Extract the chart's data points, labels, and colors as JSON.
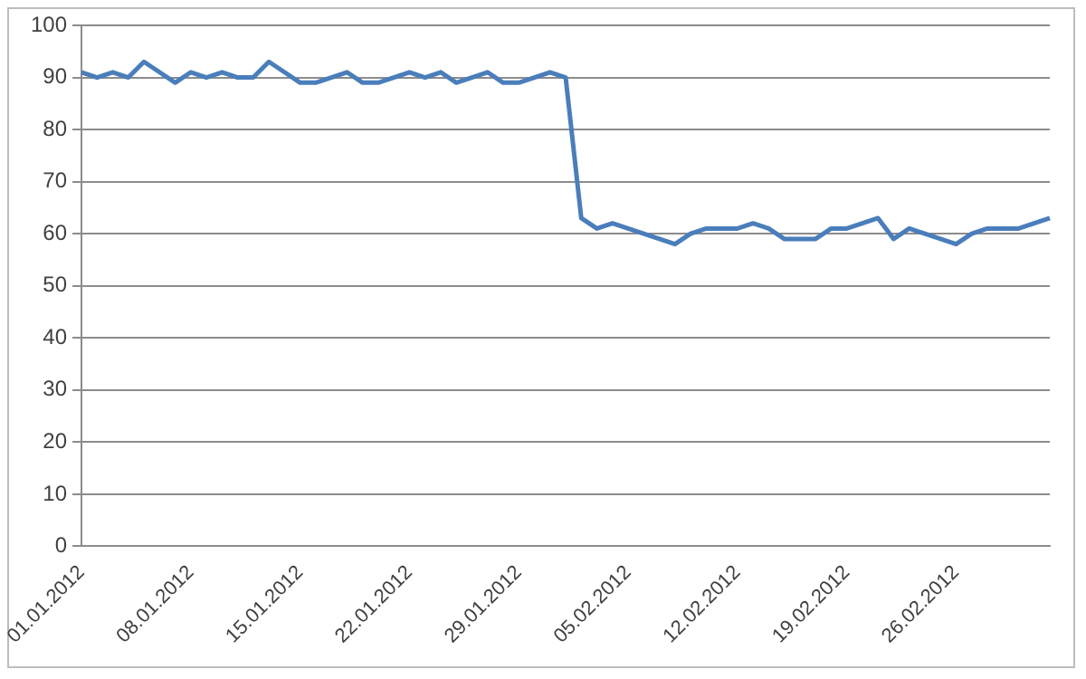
{
  "chart_data": {
    "type": "line",
    "categories": [
      "01.01.2012",
      null,
      null,
      null,
      null,
      null,
      null,
      "08.01.2012",
      null,
      null,
      null,
      null,
      null,
      null,
      "15.01.2012",
      null,
      null,
      null,
      null,
      null,
      null,
      "22.01.2012",
      null,
      null,
      null,
      null,
      null,
      null,
      "29.01.2012",
      null,
      null,
      null,
      null,
      null,
      null,
      "05.02.2012",
      null,
      null,
      null,
      null,
      null,
      null,
      "12.02.2012",
      null,
      null,
      null,
      null,
      null,
      null,
      "19.02.2012",
      null,
      null,
      null,
      null,
      null,
      null,
      "26.02.2012",
      null,
      null,
      null,
      null,
      null,
      null
    ],
    "series": [
      {
        "color": "#4a7ebb",
        "values": [
          91,
          90,
          91,
          90,
          93,
          91,
          89,
          91,
          90,
          91,
          90,
          90,
          93,
          91,
          89,
          89,
          90,
          91,
          89,
          89,
          90,
          91,
          90,
          91,
          89,
          90,
          91,
          89,
          89,
          90,
          91,
          90,
          63,
          61,
          62,
          61,
          60,
          59,
          58,
          60,
          61,
          61,
          61,
          62,
          61,
          59,
          59,
          59,
          61,
          61,
          62,
          63,
          59,
          61,
          60,
          59,
          58,
          60,
          61,
          61,
          61,
          62,
          63
        ]
      }
    ],
    "ylim": [
      0,
      100
    ],
    "yticks": [
      0,
      10,
      20,
      30,
      40,
      50,
      60,
      70,
      80,
      90,
      100
    ],
    "grid": "y",
    "legend": false,
    "marker": "none",
    "line_style": "solid"
  }
}
